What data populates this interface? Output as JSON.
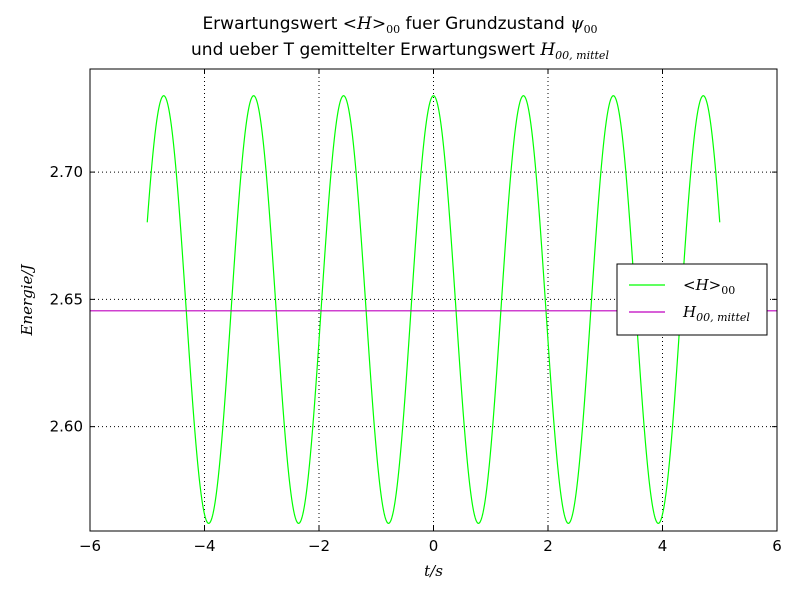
{
  "chart_data": {
    "type": "line",
    "title_line1": {
      "text_a": "Erwartungswert ",
      "math_a": "<H>",
      "math_a_sub": "00",
      "text_b": " fuer Grundzustand ",
      "math_b": "ψ",
      "math_b_sub": "00"
    },
    "title_line2": {
      "text_a": "und ueber T gemittelter Erwartungswert ",
      "math_a": "H",
      "math_a_sub": "00, mittel"
    },
    "xlabel": "t/s",
    "ylabel": "Energie/J",
    "xlim": [
      -6,
      6
    ],
    "ylim": [
      2.559,
      2.7405
    ],
    "x_ticks": [
      -6,
      -4,
      -2,
      0,
      2,
      4,
      6
    ],
    "x_tick_labels": [
      "−6",
      "−4",
      "−2",
      "0",
      "2",
      "4",
      "6"
    ],
    "y_ticks": [
      2.6,
      2.65,
      2.7
    ],
    "y_tick_labels": [
      "2.60",
      "2.65",
      "2.70"
    ],
    "grid": true,
    "legend_position": "right",
    "series": [
      {
        "name": "<H>",
        "name_sub": "00",
        "color": "#00ff00",
        "function": "2.646 + 0.084*cos(4*t)",
        "x_range": [
          -5,
          5
        ],
        "amplitude": 0.084,
        "mean": 2.646,
        "angular_frequency": 4,
        "y_max": 2.73,
        "y_min": 2.562
      },
      {
        "name": "H",
        "name_sub": "00, mittel",
        "color": "#bf00bf",
        "function": "constant",
        "x_range": [
          -6,
          6
        ],
        "value": 2.6455
      }
    ]
  }
}
